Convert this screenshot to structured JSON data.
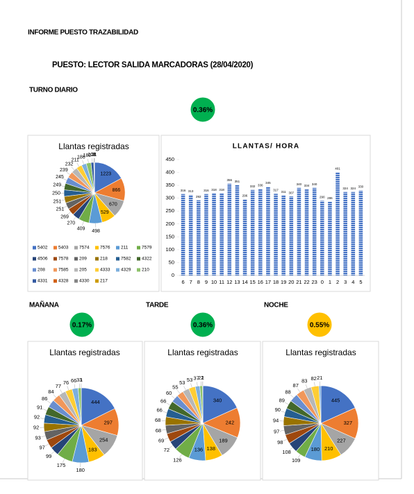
{
  "document": {
    "title": "INFORME PUESTO TRAZABILIDAD",
    "station": "PUESTO: LECTOR SALIDA MARCADORAS (28/04/2020)",
    "shifts": [
      {
        "label": "TURNO DIARIO",
        "rate": "0.36%",
        "color": "#00b050"
      },
      {
        "label": "MAÑANA",
        "rate": "0.17%",
        "color": "#00b050"
      },
      {
        "label": "TARDE",
        "rate": "0.36%",
        "color": "#00b050"
      },
      {
        "label": "NOCHE",
        "rate": "0.55%",
        "color": "#ffc000"
      }
    ]
  },
  "chart_data": [
    {
      "type": "pie",
      "title": "Llantas registradas",
      "categories": [
        "5402",
        "5403",
        "7574",
        "7576",
        "211",
        "7579",
        "4506",
        "7578",
        "209",
        "218",
        "7582",
        "4322",
        "208",
        "7585",
        "205",
        "4333",
        "4329",
        "210",
        "4331",
        "4328",
        "4330",
        "217"
      ],
      "values": [
        1223,
        866,
        670,
        529,
        498,
        409,
        270,
        269,
        251,
        251,
        250,
        249,
        245,
        239,
        232,
        211,
        186,
        180,
        108,
        21,
        2,
        1
      ],
      "colors": [
        "#4472c4",
        "#ed7d31",
        "#a5a5a5",
        "#ffc000",
        "#5b9bd5",
        "#70ad47",
        "#264478",
        "#9e480e",
        "#636363",
        "#997300",
        "#255e91",
        "#43682b",
        "#698ed0",
        "#f1975a",
        "#b7b7b7",
        "#ffcd33",
        "#7cafdd",
        "#8cc168",
        "#335aa1",
        "#d26012",
        "#848484",
        "#cc9a00"
      ]
    },
    {
      "type": "bar",
      "title": "LLANTAS/ HORA",
      "categories": [
        "6",
        "7",
        "8",
        "9",
        "10",
        "11",
        "12",
        "13",
        "14",
        "15",
        "16",
        "17",
        "18",
        "19",
        "20",
        "21",
        "22",
        "23",
        "0",
        "1",
        "2",
        "3",
        "4",
        "5"
      ],
      "values": [
        316,
        313,
        292,
        316,
        318,
        318,
        356,
        351,
        296,
        332,
        336,
        345,
        317,
        311,
        307,
        340,
        334,
        340,
        290,
        286,
        401,
        324,
        324,
        330
      ],
      "color": "#4472c4",
      "ylim": [
        0,
        450
      ],
      "yticks": [
        0,
        50,
        100,
        150,
        200,
        250,
        300,
        350,
        400,
        450
      ]
    },
    {
      "type": "pie",
      "title": "Llantas registradas",
      "values": [
        444,
        297,
        254,
        183,
        180,
        175,
        99,
        97,
        93,
        92,
        92,
        91,
        86,
        84,
        77,
        76,
        66,
        33,
        1
      ],
      "colors": [
        "#4472c4",
        "#ed7d31",
        "#a5a5a5",
        "#ffc000",
        "#5b9bd5",
        "#70ad47",
        "#264478",
        "#9e480e",
        "#636363",
        "#997300",
        "#255e91",
        "#43682b",
        "#698ed0",
        "#f1975a",
        "#b7b7b7",
        "#ffcd33",
        "#7cafdd",
        "#8cc168",
        "#335aa1"
      ]
    },
    {
      "type": "pie",
      "title": "Llantas registradas",
      "values": [
        340,
        242,
        189,
        138,
        136,
        126,
        72,
        69,
        68,
        68,
        66,
        66,
        60,
        55,
        53,
        53,
        37,
        22,
        1,
        1
      ],
      "colors": [
        "#4472c4",
        "#ed7d31",
        "#a5a5a5",
        "#ffc000",
        "#5b9bd5",
        "#70ad47",
        "#264478",
        "#9e480e",
        "#636363",
        "#997300",
        "#255e91",
        "#43682b",
        "#698ed0",
        "#f1975a",
        "#b7b7b7",
        "#ffcd33",
        "#7cafdd",
        "#8cc168",
        "#335aa1",
        "#d26012"
      ]
    },
    {
      "type": "pie",
      "title": "Llantas registradas",
      "values": [
        445,
        327,
        227,
        210,
        180,
        109,
        108,
        98,
        97,
        94,
        90,
        89,
        88,
        87,
        83,
        82,
        21
      ],
      "colors": [
        "#4472c4",
        "#ed7d31",
        "#a5a5a5",
        "#ffc000",
        "#5b9bd5",
        "#70ad47",
        "#264478",
        "#9e480e",
        "#636363",
        "#997300",
        "#255e91",
        "#43682b",
        "#698ed0",
        "#f1975a",
        "#b7b7b7",
        "#ffcd33",
        "#7cafdd"
      ]
    }
  ]
}
